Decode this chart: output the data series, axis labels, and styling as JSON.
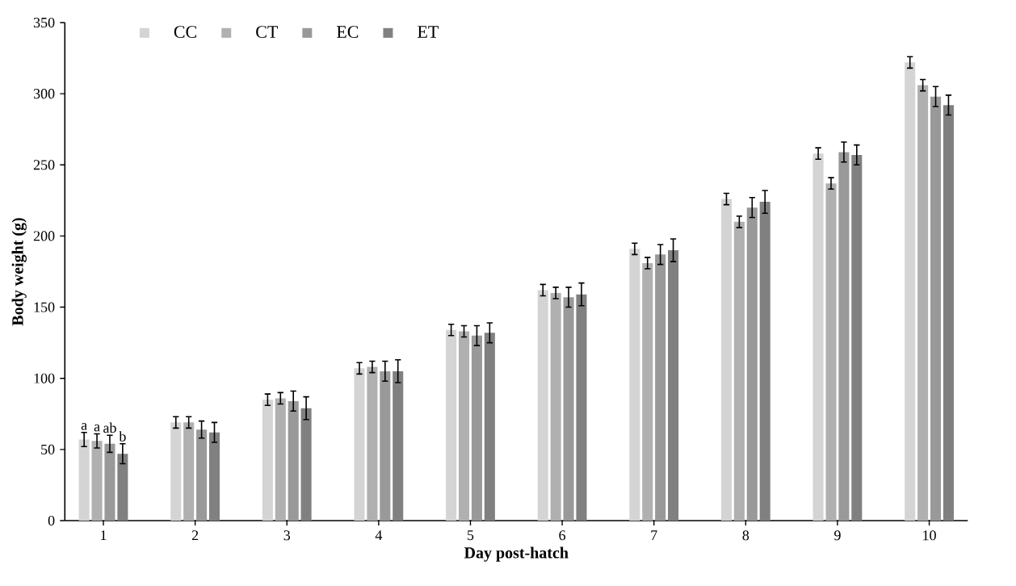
{
  "chart_data": {
    "type": "bar",
    "xlabel": "Day post-hatch",
    "ylabel": "Body weight (g)",
    "categories": [
      "1",
      "2",
      "3",
      "4",
      "5",
      "6",
      "7",
      "8",
      "9",
      "10"
    ],
    "series": [
      {
        "name": "CC",
        "color": "#d4d4d4",
        "values": [
          57,
          69,
          85,
          107,
          134,
          162,
          191,
          226,
          258,
          322
        ],
        "errors": [
          5,
          4,
          4,
          4,
          4,
          4,
          4,
          4,
          4,
          4
        ]
      },
      {
        "name": "CT",
        "color": "#b0b0b0",
        "values": [
          56,
          69,
          86,
          108,
          133,
          160,
          181,
          210,
          237,
          306
        ],
        "errors": [
          5,
          4,
          4,
          4,
          4,
          4,
          4,
          4,
          4,
          4
        ]
      },
      {
        "name": "EC",
        "color": "#999999",
        "values": [
          54,
          64,
          84,
          105,
          130,
          157,
          187,
          220,
          259,
          298
        ],
        "errors": [
          6,
          6,
          7,
          7,
          7,
          7,
          7,
          7,
          7,
          7
        ]
      },
      {
        "name": "ET",
        "color": "#808080",
        "values": [
          47,
          62,
          79,
          105,
          132,
          159,
          190,
          224,
          257,
          292
        ],
        "errors": [
          7,
          7,
          8,
          8,
          7,
          8,
          8,
          8,
          7,
          7
        ]
      }
    ],
    "ylim": [
      0,
      350
    ],
    "yticks": [
      0,
      50,
      100,
      150,
      200,
      250,
      300,
      350
    ],
    "legend": "top left",
    "annotations": [
      {
        "text": "a",
        "x": "1",
        "y": 57
      },
      {
        "text": "a",
        "x": "1",
        "y": 56
      },
      {
        "text": "ab",
        "x": "1",
        "y": 54
      },
      {
        "text": "b",
        "x": "1",
        "y": 47
      }
    ]
  }
}
